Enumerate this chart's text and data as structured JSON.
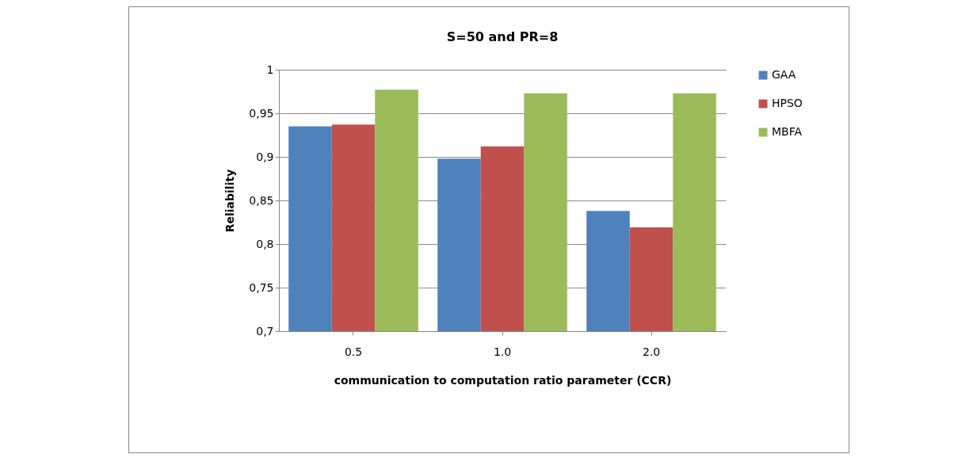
{
  "chart_data": {
    "type": "bar",
    "title": "S=50 and PR=8",
    "xlabel": "communication to computation ratio  parameter (CCR)",
    "ylabel": "Reliability",
    "categories": [
      "0.5",
      "1.0",
      "2.0"
    ],
    "series": [
      {
        "name": "GAA",
        "color": "#4f81bd",
        "values": [
          0.935,
          0.898,
          0.838
        ]
      },
      {
        "name": "HPSO",
        "color": "#c0504d",
        "values": [
          0.937,
          0.912,
          0.819
        ]
      },
      {
        "name": "MBFA",
        "color": "#9bbb59",
        "values": [
          0.977,
          0.973,
          0.973
        ]
      }
    ],
    "ylim": [
      0.7,
      1
    ],
    "yticks": [
      {
        "value": 0.7,
        "label": "0,7"
      },
      {
        "value": 0.75,
        "label": "0,75"
      },
      {
        "value": 0.8,
        "label": "0,8"
      },
      {
        "value": 0.85,
        "label": "0,85"
      },
      {
        "value": 0.9,
        "label": "0,9"
      },
      {
        "value": 0.95,
        "label": "0,95"
      },
      {
        "value": 1,
        "label": "1"
      }
    ],
    "grid": "y",
    "legend": "right"
  }
}
